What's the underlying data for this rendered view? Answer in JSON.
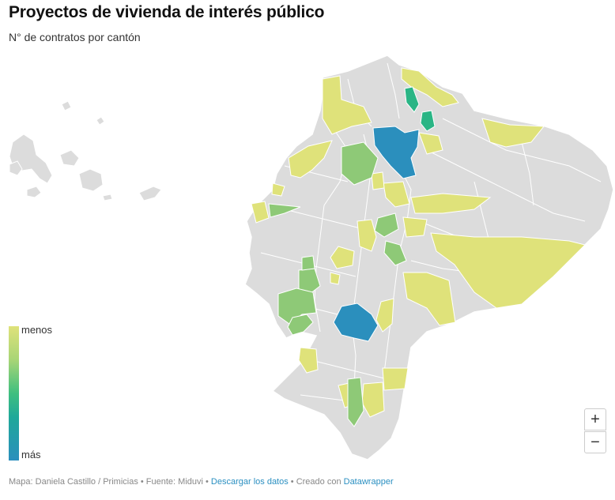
{
  "title": "Proyectos de vivienda de interés público",
  "subtitle": "N° de contratos por cantón",
  "legend": {
    "min_label": "menos",
    "max_label": "más",
    "colors": [
      "#dfe27a",
      "#a8d576",
      "#3fbf7f",
      "#1fa89a",
      "#2b8fbd"
    ]
  },
  "map": {
    "base_color": "#dcdcdc",
    "border_color": "#ffffff",
    "region": "Ecuador (cantones)"
  },
  "zoom": {
    "in_label": "+",
    "out_label": "−"
  },
  "footer": {
    "credit": "Mapa: Daniela Castillo / Primicias • Fuente: Miduvi • ",
    "download_link": "Descargar los datos",
    "created_with": " • Creado con ",
    "tool_link": "Datawrapper"
  }
}
